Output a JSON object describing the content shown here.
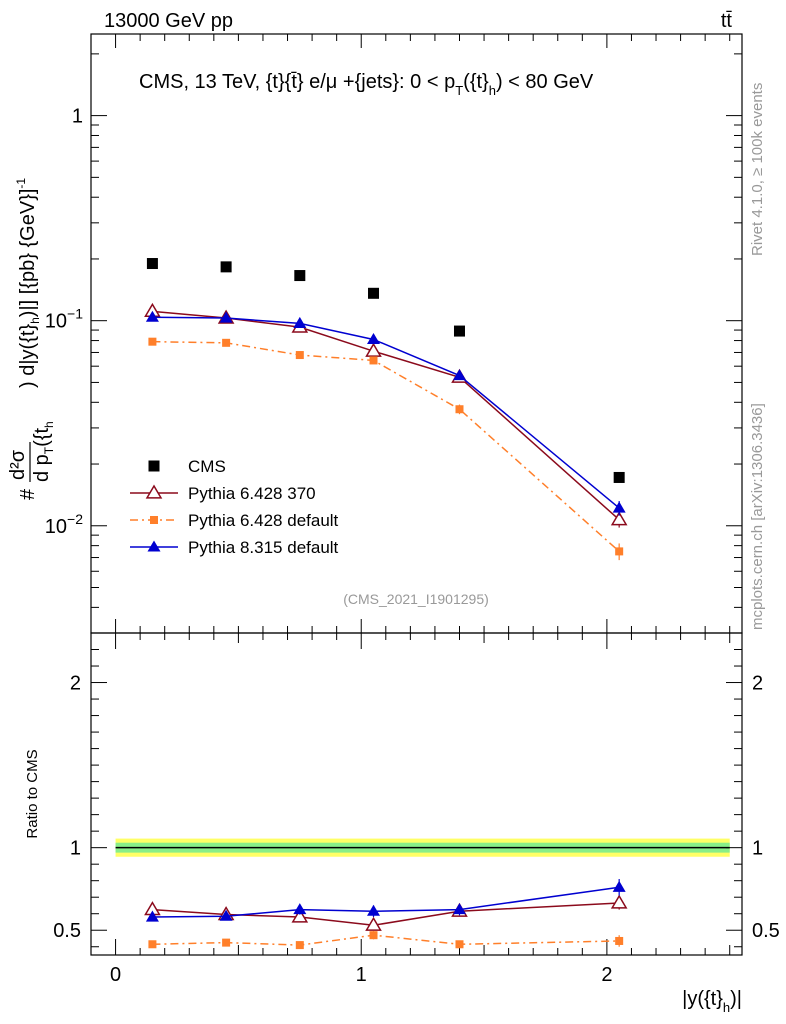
{
  "header": {
    "left": "13000 GeV pp",
    "right": "tt̄"
  },
  "side_text": {
    "rivet": "Rivet 4.1.0, ≥ 100k events",
    "mcplots": "mcplots.cern.ch [arXiv:1306.3436]"
  },
  "watermark": "(CMS_2021_I1901295)",
  "chart_data": [
    {
      "type": "scatter",
      "panel": "main",
      "title": "CMS, 13 TeV, {t}{t̄} e/μ +{jets}: 0 <  p_T({t}_h) < 80 GeV",
      "title_parts": {
        "a": "CMS, 13 TeV, {t}{t̄} e/μ +{jets}: 0 <  p",
        "sub1": "T",
        "b": "({t}",
        "sub2": "h",
        "c": ") < 80 GeV"
      },
      "ylabel": "#d²σ / dp_T({t}_h) d|y({t}_h)| [{pb} {GeV}]^-1",
      "ylabel_parts": {
        "hash": "#",
        "num": "d²σ",
        "den": "d p",
        "den_sub": "T",
        "den_rest": "({t",
        "den_rest_sub": "h",
        "rest": ") d|y({t}",
        "rest_sub": "h",
        "rest2": ")|] [{pb} {GeV}]",
        "sup": "-1"
      },
      "yscale": "log",
      "ylim": [
        0.003,
        2.5
      ],
      "xlim": [
        -0.1,
        2.55
      ],
      "y_ticks": [
        {
          "value": 0.01,
          "label": "10^-2",
          "base": "10",
          "exp": "−2"
        },
        {
          "value": 0.1,
          "label": "10^-1",
          "base": "10",
          "exp": "−1"
        },
        {
          "value": 1,
          "label": "1",
          "base": "1",
          "exp": ""
        }
      ],
      "legend_position": "lower-left",
      "series": [
        {
          "name": "CMS",
          "marker": "square",
          "color": "#000000",
          "x": [
            0.15,
            0.45,
            0.75,
            1.05,
            1.4,
            2.05
          ],
          "y": [
            0.19,
            0.183,
            0.166,
            0.136,
            0.089,
            0.0172
          ],
          "err": [
            0,
            0,
            0,
            0,
            0,
            0
          ]
        },
        {
          "name": "Pythia 6.428 370",
          "marker": "open-triangle",
          "color": "#8b0a1c",
          "line": "solid",
          "x": [
            0.15,
            0.45,
            0.75,
            1.05,
            1.4,
            2.05
          ],
          "y": [
            0.111,
            0.103,
            0.093,
            0.071,
            0.053,
            0.0107
          ],
          "err": [
            0.003,
            0.003,
            0.003,
            0.003,
            0.002,
            0.0009
          ]
        },
        {
          "name": "Pythia 6.428 default",
          "marker": "square-small",
          "color": "#ff7f2a",
          "line": "dashdot",
          "x": [
            0.15,
            0.45,
            0.75,
            1.05,
            1.4,
            2.05
          ],
          "y": [
            0.079,
            0.078,
            0.068,
            0.064,
            0.037,
            0.0075
          ],
          "err": [
            0.002,
            0.002,
            0.002,
            0.002,
            0.002,
            0.0007
          ]
        },
        {
          "name": "Pythia 8.315 default",
          "marker": "filled-triangle",
          "color": "#0000d0",
          "line": "solid",
          "x": [
            0.15,
            0.45,
            0.75,
            1.05,
            1.4,
            2.05
          ],
          "y": [
            0.104,
            0.103,
            0.097,
            0.081,
            0.054,
            0.0122
          ],
          "err": [
            0.003,
            0.003,
            0.003,
            0.004,
            0.002,
            0.001
          ]
        }
      ]
    },
    {
      "type": "scatter",
      "panel": "ratio",
      "ylabel": "Ratio to CMS",
      "xlabel": "|y({t}_h)|",
      "xlabel_parts": {
        "a": "|y({t}",
        "sub": "h",
        "b": ")|"
      },
      "ylim": [
        0.35,
        2.3
      ],
      "xlim": [
        -0.1,
        2.55
      ],
      "x_ticks": [
        0,
        1,
        2
      ],
      "y_ticks_left": [
        0.5,
        1,
        2
      ],
      "y_ticks_right": [
        0.5,
        1,
        2
      ],
      "reference_band": {
        "inner": [
          0.97,
          1.03
        ],
        "outer": [
          0.945,
          1.055
        ]
      },
      "series": [
        {
          "name": "Pythia 6.428 370",
          "color": "#8b0a1c",
          "marker": "open-triangle",
          "line": "solid",
          "x": [
            0.15,
            0.45,
            0.75,
            1.05,
            1.4,
            2.05
          ],
          "y": [
            0.625,
            0.595,
            0.58,
            0.53,
            0.615,
            0.665
          ],
          "err": [
            0.015,
            0.015,
            0.015,
            0.02,
            0.025,
            0.04
          ]
        },
        {
          "name": "Pythia 6.428 default",
          "color": "#ff7f2a",
          "marker": "square-small",
          "line": "dashdot",
          "x": [
            0.15,
            0.45,
            0.75,
            1.05,
            1.4,
            2.05
          ],
          "y": [
            0.415,
            0.425,
            0.41,
            0.47,
            0.415,
            0.435
          ],
          "err": [
            0.015,
            0.02,
            0.015,
            0.025,
            0.02,
            0.035
          ]
        },
        {
          "name": "Pythia 8.315 default",
          "color": "#0000d0",
          "marker": "filled-triangle",
          "line": "solid",
          "x": [
            0.15,
            0.45,
            0.75,
            1.05,
            1.4,
            2.05
          ],
          "y": [
            0.58,
            0.585,
            0.625,
            0.615,
            0.625,
            0.76
          ],
          "err": [
            0.025,
            0.025,
            0.03,
            0.035,
            0.035,
            0.05
          ]
        }
      ]
    }
  ]
}
